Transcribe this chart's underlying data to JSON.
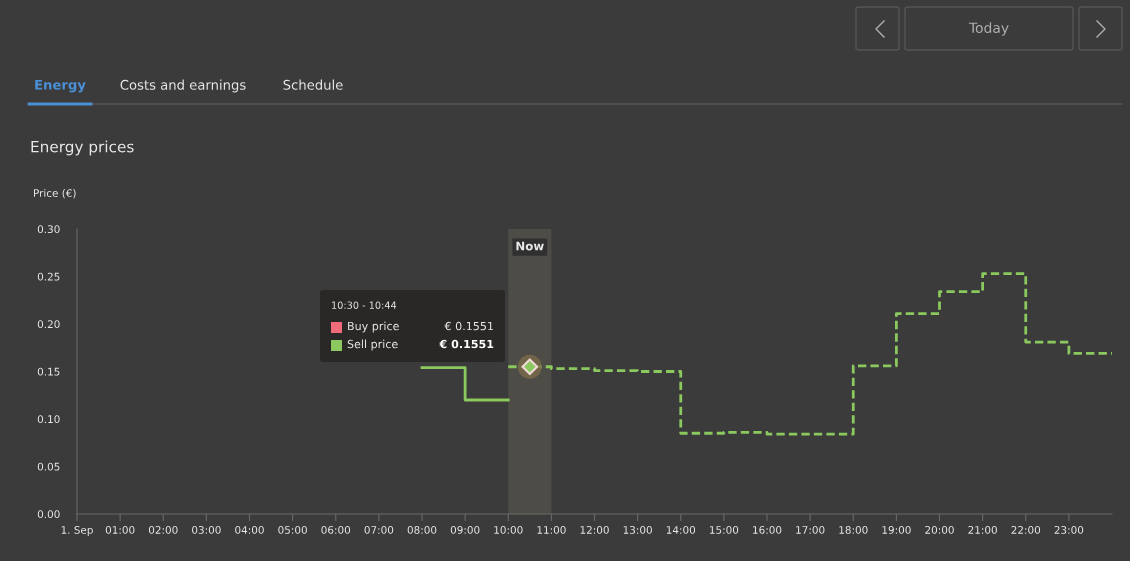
{
  "chart_data": {
    "type": "step",
    "title": "Energy prices",
    "ylabel": "Price (€)",
    "annotations": [
      "Energy",
      "Costs and earnings",
      "Schedule",
      "Today",
      "10:30 - 10:44",
      "Buy price",
      "€ 0.1551",
      "Sell price",
      "€ 0.1551"
    ],
    "xlim": [
      0,
      24
    ],
    "xticks": [
      {
        "value": 0,
        "label": "1. Sep"
      },
      {
        "value": 1,
        "label": "01:00"
      },
      {
        "value": 2,
        "label": "02:00"
      },
      {
        "value": 3,
        "label": "03:00"
      },
      {
        "value": 4,
        "label": "04:00"
      },
      {
        "value": 5,
        "label": "05:00"
      },
      {
        "value": 6,
        "label": "06:00"
      },
      {
        "value": 7,
        "label": "07:00"
      },
      {
        "value": 8,
        "label": "08:00"
      },
      {
        "value": 9,
        "label": "09:00"
      },
      {
        "value": 10,
        "label": "10:00"
      },
      {
        "value": 11,
        "label": "11:00"
      },
      {
        "value": 12,
        "label": "12:00"
      },
      {
        "value": 13,
        "label": "13:00"
      },
      {
        "value": 14,
        "label": "14:00"
      },
      {
        "value": 15,
        "label": "15:00"
      },
      {
        "value": 16,
        "label": "16:00"
      },
      {
        "value": 17,
        "label": "17:00"
      },
      {
        "value": 18,
        "label": "18:00"
      },
      {
        "value": 19,
        "label": "19:00"
      },
      {
        "value": 20,
        "label": "20:00"
      },
      {
        "value": 21,
        "label": "21:00"
      },
      {
        "value": 22,
        "label": "22:00"
      },
      {
        "value": 23,
        "label": "23:00"
      }
    ],
    "ylim": [
      0,
      0.3
    ],
    "yticks": [
      {
        "value": 0,
        "label": "0.00"
      },
      {
        "value": 0.05,
        "label": "0.05"
      },
      {
        "value": 0.1,
        "label": "0.10"
      },
      {
        "value": 0.15,
        "label": "0.15"
      },
      {
        "value": 0.2,
        "label": "0.20"
      },
      {
        "value": 0.25,
        "label": "0.25"
      },
      {
        "value": 0.3,
        "label": "0.30"
      }
    ],
    "grid": false,
    "bands": [
      {
        "axis": "x",
        "from": 10,
        "to": 11,
        "label": "Now",
        "color": "#4e4c47"
      }
    ],
    "series": [
      {
        "color": "#8bc95f",
        "line_style": "solid",
        "x": [
          8,
          9,
          10
        ],
        "values": [
          0.154,
          0.12,
          0.12
        ]
      },
      {
        "color": "#8bc95f",
        "line_style": "dashed",
        "x": [
          10,
          11,
          12,
          13,
          14,
          15,
          16,
          17,
          18,
          19,
          20,
          21,
          22,
          23,
          24
        ],
        "values": [
          0.155,
          0.153,
          0.151,
          0.15,
          0.085,
          0.086,
          0.084,
          0.084,
          0.156,
          0.211,
          0.234,
          0.253,
          0.181,
          0.169,
          0.169
        ]
      },
      {
        "type": "scatter",
        "color": "#8bc95f",
        "marker": "diamond",
        "x": [
          10.5
        ],
        "values": [
          0.155
        ]
      }
    ]
  }
}
